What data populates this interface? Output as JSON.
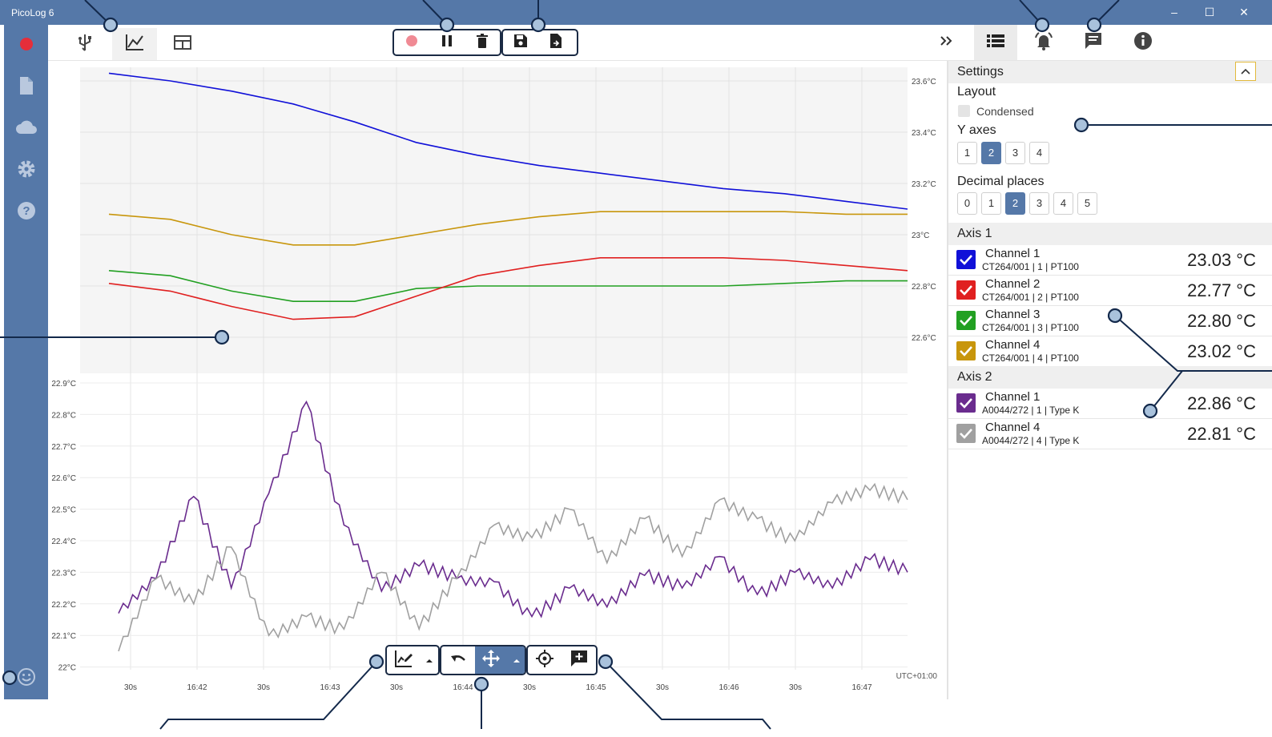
{
  "window": {
    "title": "PicoLog 6",
    "minimize": "–",
    "maximize": "☐",
    "close": "✕"
  },
  "sidebar": {
    "items": [
      "record-icon",
      "file-icon",
      "cloud-icon",
      "settings-gear-icon",
      "help-icon"
    ],
    "bottom": "smiley-icon"
  },
  "settings": {
    "title": "Settings",
    "layout_label": "Layout",
    "condensed_label": "Condensed",
    "y_axes_label": "Y axes",
    "y_axes_options": [
      "1",
      "2",
      "3",
      "4"
    ],
    "y_axes_selected": "2",
    "decimal_label": "Decimal places",
    "decimal_options": [
      "0",
      "1",
      "2",
      "3",
      "4",
      "5"
    ],
    "decimal_selected": "2"
  },
  "axis1": {
    "label": "Axis 1",
    "channels": [
      {
        "name": "Channel 1",
        "sub": "CT264/001 | 1 | PT100",
        "value": "23.03 °C",
        "color": "#1010d8"
      },
      {
        "name": "Channel 2",
        "sub": "CT264/001 | 2 | PT100",
        "value": "22.77 °C",
        "color": "#e02020"
      },
      {
        "name": "Channel 3",
        "sub": "CT264/001 | 3 | PT100",
        "value": "22.80 °C",
        "color": "#22a022"
      },
      {
        "name": "Channel 4",
        "sub": "CT264/001 | 4 | PT100",
        "value": "23.02 °C",
        "color": "#c8960c"
      }
    ]
  },
  "axis2": {
    "label": "Axis 2",
    "channels": [
      {
        "name": "Channel 1",
        "sub": "A0044/272 | 1 | Type K",
        "value": "22.86 °C",
        "color": "#6a2c8e"
      },
      {
        "name": "Channel 4",
        "sub": "A0044/272 | 4 | Type K",
        "value": "22.81 °C",
        "color": "#a0a0a0"
      }
    ]
  },
  "graph": {
    "upper_ticks": [
      "23.6°C",
      "23.4°C",
      "23.2°C",
      "23°C",
      "22.8°C",
      "22.6°C"
    ],
    "lower_ticks": [
      "22.9°C",
      "22.8°C",
      "22.7°C",
      "22.6°C",
      "22.5°C",
      "22.4°C",
      "22.3°C",
      "22.2°C",
      "22.1°C",
      "22°C"
    ],
    "x_ticks": [
      "30s",
      "16:42",
      "30s",
      "16:43",
      "30s",
      "16:44",
      "30s",
      "16:45",
      "30s",
      "16:46",
      "30s",
      "16:47"
    ],
    "timezone": "UTC+01:00"
  },
  "chart_data": [
    {
      "type": "line",
      "ylim": [
        22.5,
        23.65
      ],
      "x_ticks": [
        "30s",
        "16:42",
        "30s",
        "16:43",
        "30s",
        "16:44",
        "30s",
        "16:45",
        "30s",
        "16:46",
        "30s",
        "16:47"
      ],
      "series": [
        {
          "name": "Channel 1",
          "color": "#1010d8",
          "values": [
            23.63,
            23.6,
            23.56,
            23.51,
            23.44,
            23.36,
            23.31,
            23.27,
            23.24,
            23.21,
            23.18,
            23.16,
            23.13,
            23.1
          ]
        },
        {
          "name": "Channel 4",
          "color": "#c8960c",
          "values": [
            23.08,
            23.06,
            23.0,
            22.96,
            22.96,
            23.0,
            23.04,
            23.07,
            23.09,
            23.09,
            23.09,
            23.09,
            23.08,
            23.08
          ]
        },
        {
          "name": "Channel 3",
          "color": "#22a022",
          "values": [
            22.86,
            22.84,
            22.78,
            22.74,
            22.74,
            22.79,
            22.8,
            22.8,
            22.8,
            22.8,
            22.8,
            22.81,
            22.82,
            22.82
          ]
        },
        {
          "name": "Channel 2",
          "color": "#e02020",
          "values": [
            22.81,
            22.78,
            22.72,
            22.67,
            22.68,
            22.76,
            22.84,
            22.88,
            22.91,
            22.91,
            22.91,
            22.9,
            22.88,
            22.86
          ]
        }
      ]
    },
    {
      "type": "line",
      "ylim": [
        22.0,
        22.95
      ],
      "x_ticks": [
        "30s",
        "16:42",
        "30s",
        "16:43",
        "30s",
        "16:44",
        "30s",
        "16:45",
        "30s",
        "16:46",
        "30s",
        "16:47"
      ],
      "series": [
        {
          "name": "Channel 1",
          "color": "#6a2c8e",
          "values": [
            22.17,
            22.28,
            22.54,
            22.25,
            22.55,
            22.84,
            22.45,
            22.24,
            22.32,
            22.28,
            22.27,
            22.16,
            22.25,
            22.19,
            22.29,
            22.25,
            22.35,
            22.23,
            22.3,
            22.25,
            22.34,
            22.3
          ]
        },
        {
          "name": "Channel 4",
          "color": "#a0a0a0",
          "values": [
            22.05,
            22.28,
            22.2,
            22.38,
            22.1,
            22.16,
            22.12,
            22.3,
            22.12,
            22.28,
            22.45,
            22.41,
            22.5,
            22.33,
            22.47,
            22.35,
            22.53,
            22.47,
            22.4,
            22.52,
            22.56,
            22.53
          ]
        }
      ]
    }
  ]
}
